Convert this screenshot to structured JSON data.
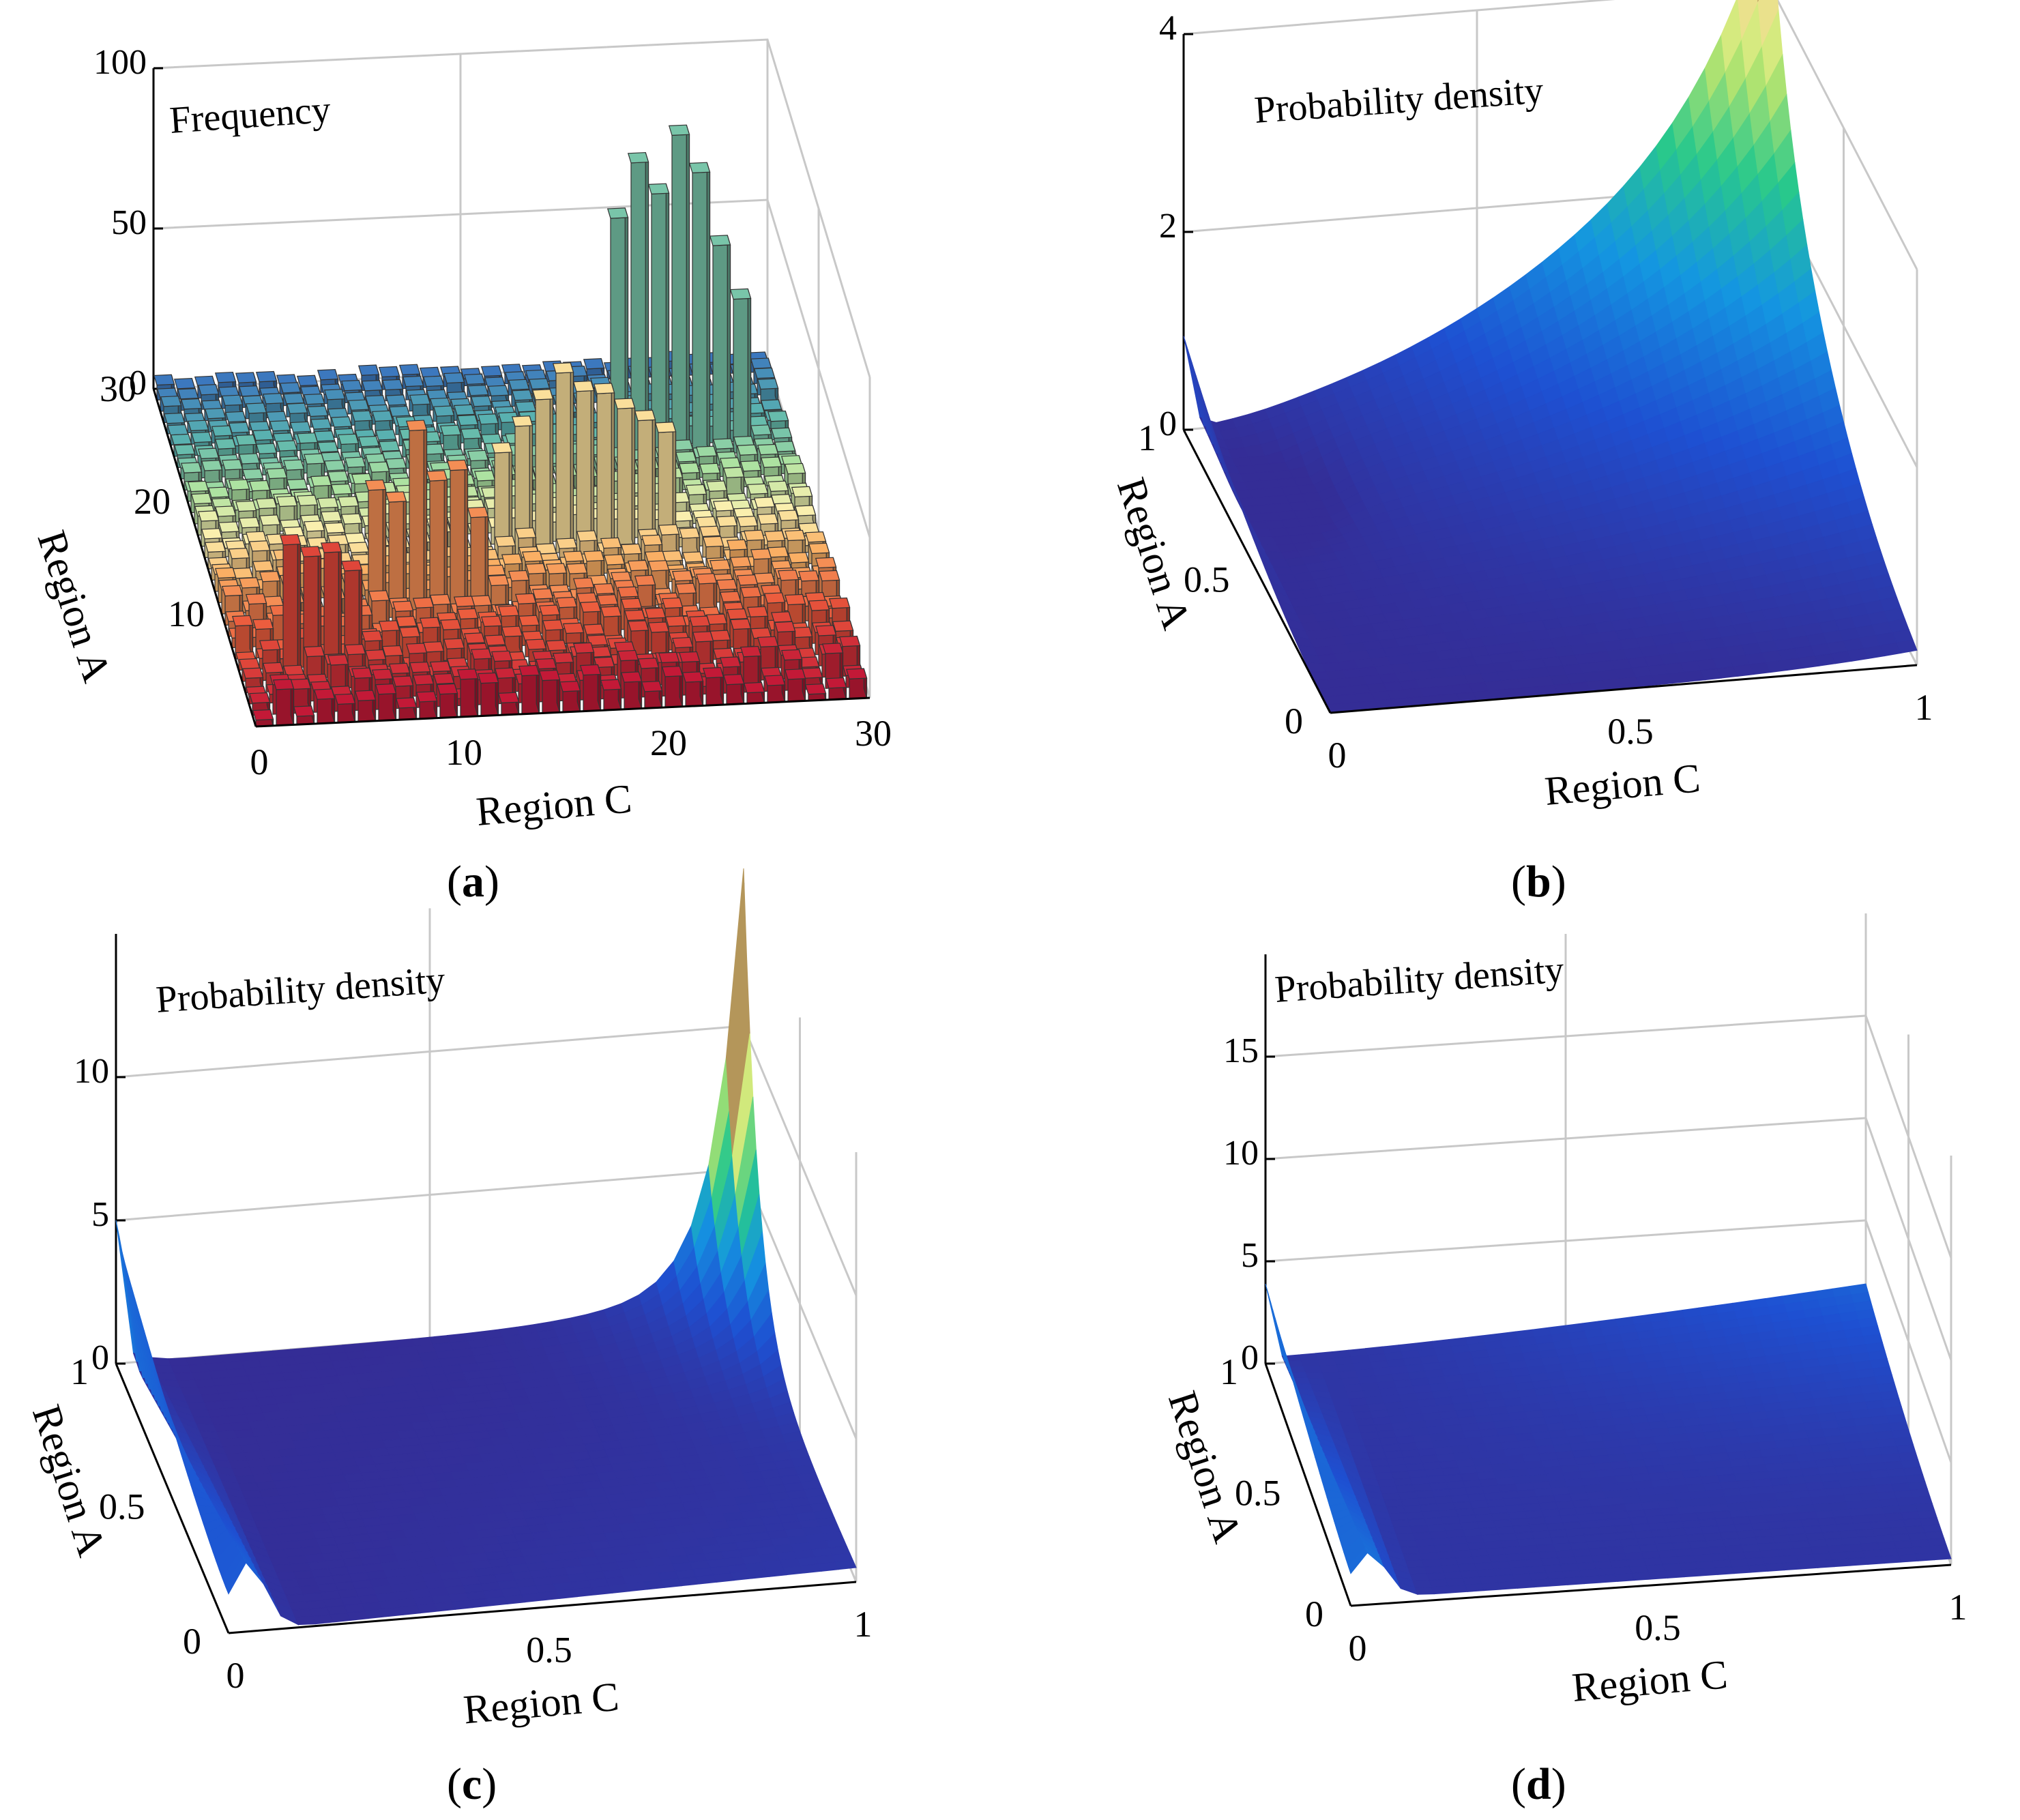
{
  "chart_data": [
    {
      "id": "a",
      "type": "3d-bar",
      "panel_label": "a",
      "title": "Frequency",
      "xlabel": "Region C",
      "ylabel": "Region A",
      "zlabel": "Frequency",
      "xlim": [
        0,
        30
      ],
      "ylim": [
        0,
        30
      ],
      "zlim": [
        0,
        100
      ],
      "x_ticks": [
        "0",
        "10",
        "20",
        "30"
      ],
      "y_ticks": [
        "10",
        "20",
        "30"
      ],
      "z_ticks": [
        "0",
        "50",
        "100"
      ],
      "grid": true,
      "colormap": "red (Region A low) → orange → yellow → green → blue (Region A high)",
      "peak_columns": [
        {
          "region_c": 2,
          "region_a": 4,
          "frequency": 42
        },
        {
          "region_c": 3,
          "region_a": 4,
          "frequency": 38
        },
        {
          "region_c": 4,
          "region_a": 4,
          "frequency": 39
        },
        {
          "region_c": 5,
          "region_a": 4,
          "frequency": 33
        },
        {
          "region_c": 7,
          "region_a": 9,
          "frequency": 40
        },
        {
          "region_c": 8,
          "region_a": 9,
          "frequency": 36
        },
        {
          "region_c": 9,
          "region_a": 9,
          "frequency": 58
        },
        {
          "region_c": 10,
          "region_a": 9,
          "frequency": 42
        },
        {
          "region_c": 11,
          "region_a": 9,
          "frequency": 45
        },
        {
          "region_c": 12,
          "region_a": 9,
          "frequency": 30
        },
        {
          "region_c": 14,
          "region_a": 14,
          "frequency": 32
        },
        {
          "region_c": 15,
          "region_a": 14,
          "frequency": 40
        },
        {
          "region_c": 16,
          "region_a": 14,
          "frequency": 48
        },
        {
          "region_c": 17,
          "region_a": 14,
          "frequency": 56
        },
        {
          "region_c": 18,
          "region_a": 14,
          "frequency": 50
        },
        {
          "region_c": 19,
          "region_a": 14,
          "frequency": 49
        },
        {
          "region_c": 20,
          "region_a": 14,
          "frequency": 44
        },
        {
          "region_c": 21,
          "region_a": 14,
          "frequency": 40
        },
        {
          "region_c": 22,
          "region_a": 14,
          "frequency": 36
        },
        {
          "region_c": 21,
          "region_a": 22,
          "frequency": 75
        },
        {
          "region_c": 22,
          "region_a": 22,
          "frequency": 92
        },
        {
          "region_c": 23,
          "region_a": 22,
          "frequency": 82
        },
        {
          "region_c": 24,
          "region_a": 22,
          "frequency": 100
        },
        {
          "region_c": 25,
          "region_a": 22,
          "frequency": 88
        },
        {
          "region_c": 26,
          "region_a": 22,
          "frequency": 65
        },
        {
          "region_c": 27,
          "region_a": 22,
          "frequency": 48
        }
      ]
    },
    {
      "id": "b",
      "type": "surface",
      "panel_label": "b",
      "title": "Probability density",
      "xlabel": "Region C",
      "ylabel": "Region A",
      "zlabel": "Probability density",
      "xlim": [
        0,
        1
      ],
      "ylim": [
        0,
        1
      ],
      "zlim": [
        0,
        4
      ],
      "x_ticks": [
        "0",
        "0.5",
        "1"
      ],
      "y_ticks": [
        "0",
        "0.5",
        "1"
      ],
      "z_ticks": [
        "0",
        "2",
        "4"
      ],
      "grid": true,
      "colormap": "parula-like (dark blue → cyan → green → yellow → tan)",
      "features": [
        {
          "description": "peak at the corner",
          "region_c": 1,
          "region_a": 1,
          "density": 4.3
        },
        {
          "description": "spike near the origin edge",
          "region_c": 0.02,
          "region_a": 0.9,
          "density": 0.9
        },
        {
          "description": "shallow valley",
          "region_c": 0.25,
          "region_a": 0.35,
          "density": 0.4
        }
      ]
    },
    {
      "id": "c",
      "type": "surface",
      "panel_label": "c",
      "title": "Probability density",
      "xlabel": "Region C",
      "ylabel": "Region A",
      "zlabel": "Probability density",
      "xlim": [
        0,
        1
      ],
      "ylim": [
        0,
        1
      ],
      "zlim": [
        0,
        15
      ],
      "x_ticks": [
        "0",
        "0.5",
        "1"
      ],
      "y_ticks": [
        "0",
        "0.5",
        "1"
      ],
      "z_ticks": [
        "0",
        "5",
        "10"
      ],
      "grid": true,
      "colormap": "parula-like (dark blue → cyan → green → yellow)",
      "features": [
        {
          "description": "sharp peak at the corner",
          "region_c": 1,
          "region_a": 1,
          "density": 14.5
        },
        {
          "description": "spike near the origin edge",
          "region_c": 0.02,
          "region_a": 0.8,
          "density": 4.5
        },
        {
          "description": "small bump at far corner",
          "region_c": 0,
          "region_a": 1,
          "density": 0.4
        }
      ]
    },
    {
      "id": "d",
      "type": "surface",
      "panel_label": "d",
      "title": "Probability density",
      "xlabel": "Region C",
      "ylabel": "Region A",
      "zlabel": "Probability density",
      "xlim": [
        0,
        1
      ],
      "ylim": [
        0,
        1
      ],
      "zlim": [
        0,
        20
      ],
      "x_ticks": [
        "0",
        "0.5",
        "1"
      ],
      "y_ticks": [
        "0",
        "0.5",
        "1"
      ],
      "z_ticks": [
        "0",
        "5",
        "10",
        "15"
      ],
      "grid": true,
      "colormap": "parula-like (dark blue → cyan → green)",
      "features": [
        {
          "description": "narrow spike near the origin edge",
          "region_c": 0.02,
          "region_a": 0.8,
          "density": 3.5
        },
        {
          "description": "gentle rise toward far corner",
          "region_c": 1,
          "region_a": 1,
          "density": 1.8
        }
      ]
    }
  ]
}
